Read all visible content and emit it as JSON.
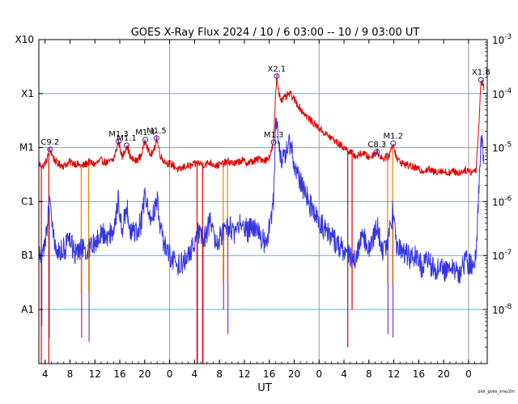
{
  "chart_data": {
    "type": "line",
    "title": "GOES X-Ray Flux   2024 / 10 /  6   03:00 -- 10 /  9   03:00   UT",
    "xlabel": "UT",
    "credit": "plot_goes_xray2m",
    "x_start_hours": 3,
    "x_end_hours": 75,
    "y_log": true,
    "ylim_exp": [
      -9,
      -3
    ],
    "x_ticks": [
      {
        "label": "4",
        "t": 4
      },
      {
        "label": "8",
        "t": 8
      },
      {
        "label": "12",
        "t": 12
      },
      {
        "label": "16",
        "t": 16
      },
      {
        "label": "20",
        "t": 20
      },
      {
        "label": "0",
        "t": 24
      },
      {
        "label": "4",
        "t": 28
      },
      {
        "label": "8",
        "t": 32
      },
      {
        "label": "12",
        "t": 36
      },
      {
        "label": "16",
        "t": 40
      },
      {
        "label": "20",
        "t": 44
      },
      {
        "label": "0",
        "t": 48
      },
      {
        "label": "4",
        "t": 52
      },
      {
        "label": "8",
        "t": 56
      },
      {
        "label": "12",
        "t": 60
      },
      {
        "label": "16",
        "t": 64
      },
      {
        "label": "20",
        "t": 68
      },
      {
        "label": "0",
        "t": 72
      }
    ],
    "day_boundaries": [
      24,
      48,
      72
    ],
    "left_ticks": [
      {
        "label": "X10",
        "exp": -3
      },
      {
        "label": "X1",
        "exp": -4
      },
      {
        "label": "M1",
        "exp": -5
      },
      {
        "label": "C1",
        "exp": -6
      },
      {
        "label": "B1",
        "exp": -7
      },
      {
        "label": "A1",
        "exp": -8
      }
    ],
    "right_ticks": [
      {
        "base": "10",
        "sup": "-3",
        "exp": -3
      },
      {
        "base": "10",
        "sup": "-4",
        "exp": -4
      },
      {
        "base": "10",
        "sup": "-5",
        "exp": -5
      },
      {
        "base": "10",
        "sup": "-6",
        "exp": -6
      },
      {
        "base": "10",
        "sup": "-7",
        "exp": -7
      },
      {
        "base": "10",
        "sup": "-8",
        "exp": -8
      }
    ],
    "grid_lines_exp": [
      -4,
      -5,
      -6,
      -7,
      -8
    ],
    "colors": {
      "long": "#e00000",
      "short": "#3535e0",
      "gap_long": "#f08000",
      "gap_short": "#9030c0",
      "grid": "#5aaee0",
      "day": "#999999",
      "marker": "#2020c0"
    },
    "flares": [
      {
        "label": "C9.2",
        "t": 4.8,
        "flux": 9.2e-06
      },
      {
        "label": "M1.3",
        "t": 15.8,
        "flux": 1.3e-05
      },
      {
        "label": "M1.1",
        "t": 17.1,
        "flux": 1.1e-05
      },
      {
        "label": "M1.4",
        "t": 20.1,
        "flux": 1.4e-05
      },
      {
        "label": "M1.5",
        "t": 21.9,
        "flux": 1.5e-05
      },
      {
        "label": "M1.3",
        "t": 40.7,
        "flux": 1.25e-05
      },
      {
        "label": "X2.1",
        "t": 41.2,
        "flux": 0.00021
      },
      {
        "label": "C8.3",
        "t": 57.3,
        "flux": 8.3e-06
      },
      {
        "label": "M1.2",
        "t": 59.9,
        "flux": 1.2e-05
      },
      {
        "label": "X1.8",
        "t": 74.0,
        "flux": 0.00018
      }
    ],
    "series": [
      {
        "name": "long",
        "points": [
          [
            3.0,
            5e-06
          ],
          [
            3.6,
            4.4e-06
          ],
          [
            4.2,
            5.6e-06
          ],
          [
            4.8,
            9.2e-06
          ],
          [
            5.4,
            6.2e-06
          ],
          [
            6.0,
            5e-06
          ],
          [
            7.0,
            4.6e-06
          ],
          [
            8.0,
            5.4e-06
          ],
          [
            9.0,
            5e-06
          ],
          [
            10.0,
            4.5e-06
          ],
          [
            11.0,
            5.4e-06
          ],
          [
            12.0,
            4.9e-06
          ],
          [
            13.0,
            5.8e-06
          ],
          [
            14.0,
            5.2e-06
          ],
          [
            15.0,
            6e-06
          ],
          [
            15.8,
            1.3e-05
          ],
          [
            16.4,
            6.5e-06
          ],
          [
            17.1,
            1.1e-05
          ],
          [
            17.8,
            6.2e-06
          ],
          [
            18.6,
            5.6e-06
          ],
          [
            19.4,
            7e-06
          ],
          [
            20.1,
            1.4e-05
          ],
          [
            20.8,
            7.4e-06
          ],
          [
            21.4,
            8e-06
          ],
          [
            21.9,
            1.5e-05
          ],
          [
            22.6,
            6.6e-06
          ],
          [
            23.5,
            5.2e-06
          ],
          [
            24.5,
            4.8e-06
          ],
          [
            25.5,
            3.8e-06
          ],
          [
            26.5,
            4.5e-06
          ],
          [
            27.5,
            4.6e-06
          ],
          [
            28.5,
            5.2e-06
          ],
          [
            29.5,
            4.8e-06
          ],
          [
            30.5,
            5.3e-06
          ],
          [
            31.5,
            4.6e-06
          ],
          [
            32.5,
            5e-06
          ],
          [
            33.5,
            5.5e-06
          ],
          [
            34.5,
            5e-06
          ],
          [
            35.5,
            5.8e-06
          ],
          [
            36.5,
            5.2e-06
          ],
          [
            37.5,
            5.6e-06
          ],
          [
            38.5,
            6.2e-06
          ],
          [
            39.5,
            5.8e-06
          ],
          [
            40.2,
            7.4e-06
          ],
          [
            40.7,
            1.25e-05
          ],
          [
            41.0,
            9e-05
          ],
          [
            41.2,
            0.00021
          ],
          [
            41.5,
            0.00011
          ],
          [
            42.0,
            7.4e-05
          ],
          [
            42.6,
            8.5e-05
          ],
          [
            43.3,
            0.0001
          ],
          [
            44.2,
            7.2e-05
          ],
          [
            45.0,
            5.2e-05
          ],
          [
            46.0,
            3.8e-05
          ],
          [
            47.0,
            2.9e-05
          ],
          [
            48.0,
            2.3e-05
          ],
          [
            49.0,
            1.8e-05
          ],
          [
            50.0,
            1.5e-05
          ],
          [
            51.0,
            1.2e-05
          ],
          [
            52.0,
            1e-05
          ],
          [
            53.0,
            8.2e-06
          ],
          [
            54.0,
            6.8e-06
          ],
          [
            55.0,
            8e-06
          ],
          [
            56.0,
            6.5e-06
          ],
          [
            57.3,
            8.3e-06
          ],
          [
            58.2,
            6.2e-06
          ],
          [
            59.2,
            7e-06
          ],
          [
            59.9,
            1.2e-05
          ],
          [
            60.5,
            6e-06
          ],
          [
            61.5,
            5e-06
          ],
          [
            62.5,
            4.6e-06
          ],
          [
            63.5,
            4.2e-06
          ],
          [
            64.5,
            3.7e-06
          ],
          [
            65.5,
            4e-06
          ],
          [
            66.5,
            3.5e-06
          ],
          [
            67.5,
            3.8e-06
          ],
          [
            68.5,
            3.4e-06
          ],
          [
            69.5,
            3.6e-06
          ],
          [
            70.5,
            3.4e-06
          ],
          [
            71.5,
            3.9e-06
          ],
          [
            72.5,
            3.5e-06
          ],
          [
            73.2,
            4e-06
          ],
          [
            73.6,
            2e-05
          ],
          [
            74.0,
            0.00018
          ],
          [
            74.5,
            0.00013
          ]
        ]
      },
      {
        "name": "short",
        "points": [
          [
            3.0,
            1.1e-07
          ],
          [
            3.6,
            8e-08
          ],
          [
            4.2,
            2.8e-07
          ],
          [
            4.8,
            1.2e-06
          ],
          [
            5.4,
            2e-07
          ],
          [
            6.0,
            1.2e-07
          ],
          [
            7.0,
            1.3e-07
          ],
          [
            8.0,
            1.8e-07
          ],
          [
            9.0,
            1e-07
          ],
          [
            10.0,
            1.4e-07
          ],
          [
            11.0,
            1.2e-07
          ],
          [
            12.0,
            1.8e-07
          ],
          [
            13.0,
            2.6e-07
          ],
          [
            14.0,
            2.2e-07
          ],
          [
            15.0,
            3e-07
          ],
          [
            15.8,
            1.1e-06
          ],
          [
            16.4,
            3.2e-07
          ],
          [
            17.1,
            9e-07
          ],
          [
            17.8,
            2.4e-07
          ],
          [
            18.6,
            2.8e-07
          ],
          [
            19.4,
            4e-07
          ],
          [
            20.1,
            1.4e-06
          ],
          [
            20.8,
            4.8e-07
          ],
          [
            21.4,
            5.5e-07
          ],
          [
            21.9,
            1.3e-06
          ],
          [
            22.6,
            2.8e-07
          ],
          [
            23.5,
            1.2e-07
          ],
          [
            24.5,
            8e-08
          ],
          [
            25.5,
            7e-08
          ],
          [
            26.5,
            8e-08
          ],
          [
            27.5,
            1.2e-07
          ],
          [
            28.5,
            3e-07
          ],
          [
            29.5,
            2e-07
          ],
          [
            30.5,
            4e-07
          ],
          [
            31.5,
            1.8e-07
          ],
          [
            32.5,
            2.4e-07
          ],
          [
            33.5,
            3.5e-07
          ],
          [
            34.5,
            2.5e-07
          ],
          [
            35.5,
            4.2e-07
          ],
          [
            36.5,
            2.8e-07
          ],
          [
            37.5,
            3.4e-07
          ],
          [
            38.5,
            2.2e-07
          ],
          [
            39.5,
            1.6e-07
          ],
          [
            40.2,
            4e-07
          ],
          [
            40.7,
            1.1e-06
          ],
          [
            41.0,
            2e-05
          ],
          [
            41.2,
            3.4e-05
          ],
          [
            41.5,
            1.2e-05
          ],
          [
            42.0,
            6e-06
          ],
          [
            42.6,
            8.5e-06
          ],
          [
            43.3,
            1.2e-05
          ],
          [
            44.2,
            4.5e-06
          ],
          [
            45.0,
            2.2e-06
          ],
          [
            46.0,
            1.2e-06
          ],
          [
            47.0,
            6.5e-07
          ],
          [
            48.0,
            4.4e-07
          ],
          [
            49.0,
            2.9e-07
          ],
          [
            50.0,
            2.2e-07
          ],
          [
            51.0,
            1.6e-07
          ],
          [
            52.0,
            1.2e-07
          ],
          [
            53.0,
            1e-07
          ],
          [
            54.0,
            9e-08
          ],
          [
            55.0,
            2.5e-07
          ],
          [
            56.0,
            1.2e-07
          ],
          [
            57.3,
            3.6e-07
          ],
          [
            58.2,
            1.1e-07
          ],
          [
            59.2,
            2.2e-07
          ],
          [
            59.9,
            7e-07
          ],
          [
            60.5,
            1.4e-07
          ],
          [
            61.5,
            1.2e-07
          ],
          [
            62.5,
            9e-08
          ],
          [
            63.5,
            1.1e-07
          ],
          [
            64.5,
            6e-08
          ],
          [
            65.5,
            8e-08
          ],
          [
            66.5,
            5.5e-08
          ],
          [
            67.5,
            6.5e-08
          ],
          [
            68.5,
            5e-08
          ],
          [
            69.5,
            5.5e-08
          ],
          [
            70.5,
            4.8e-08
          ],
          [
            71.5,
            8e-08
          ],
          [
            72.5,
            6e-08
          ],
          [
            73.2,
            9e-08
          ],
          [
            73.6,
            1.2e-06
          ],
          [
            74.0,
            1.5e-05
          ],
          [
            74.5,
            6e-06
          ]
        ]
      }
    ],
    "dropouts": [
      {
        "t": 3.4,
        "long_to": 1e-09,
        "short_to": 5e-09,
        "c_long": "#e00000",
        "c_short": "#3535e0"
      },
      {
        "t": 4.6,
        "long_to": 1e-09,
        "short_to": 3e-09,
        "c_long": "#e00000",
        "c_short": "#3535e0"
      },
      {
        "t": 9.8,
        "long_to": 2e-08,
        "short_to": 3e-09,
        "c_long": "#f08000",
        "c_short": "#9030c0"
      },
      {
        "t": 11.0,
        "long_to": 2e-08,
        "short_to": 2.5e-09,
        "c_long": "#f08000",
        "c_short": "#9030c0"
      },
      {
        "t": 28.4,
        "long_to": 1e-09,
        "short_to": 1e-09,
        "c_long": "#e00000",
        "c_short": "#3535e0"
      },
      {
        "t": 29.3,
        "long_to": 1e-09,
        "short_to": 1e-09,
        "c_long": "#e00000",
        "c_short": "#3535e0"
      },
      {
        "t": 32.6,
        "long_to": 3e-08,
        "short_to": 1e-08,
        "c_long": "#f08000",
        "c_short": "#9030c0"
      },
      {
        "t": 33.3,
        "long_to": 3e-08,
        "short_to": 3.5e-09,
        "c_long": "#f08000",
        "c_short": "#9030c0"
      },
      {
        "t": 52.6,
        "long_to": 2e-09,
        "short_to": 1e-07,
        "c_long": "#e00000",
        "c_short": "#3535e0"
      },
      {
        "t": 53.3,
        "long_to": 1e-08,
        "short_to": 1e-07,
        "c_long": "#e00000",
        "c_short": "#3535e0"
      },
      {
        "t": 59.0,
        "long_to": 3e-08,
        "short_to": 3.5e-09,
        "c_long": "#f08000",
        "c_short": "#9030c0"
      },
      {
        "t": 59.8,
        "long_to": 3e-08,
        "short_to": 3e-09,
        "c_long": "#f08000",
        "c_short": "#9030c0"
      }
    ]
  }
}
